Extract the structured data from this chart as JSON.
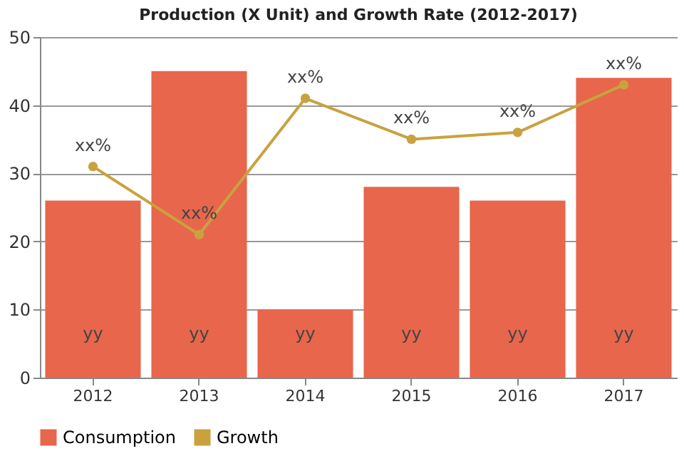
{
  "chart_data": {
    "type": "bar",
    "title": "Production (X Unit) and Growth Rate (2012-2017)",
    "categories": [
      "2012",
      "2013",
      "2014",
      "2015",
      "2016",
      "2017"
    ],
    "series": [
      {
        "name": "Consumption",
        "color": "#e8664c",
        "values": [
          26,
          45,
          10,
          28,
          26,
          44
        ],
        "value_labels": [
          "yy",
          "yy",
          "yy",
          "yy",
          "yy",
          "yy"
        ]
      },
      {
        "name": "Growth",
        "type": "line",
        "color": "#c9a23f",
        "values": [
          31,
          21,
          41,
          35,
          36,
          43
        ],
        "value_labels": [
          "xx%",
          "xx%",
          "xx%",
          "xx%",
          "xx%",
          "xx%"
        ],
        "marker": "circle",
        "line_style": "solid"
      }
    ],
    "ylim": [
      0,
      50
    ],
    "yticks": [
      0,
      10,
      20,
      30,
      40,
      50
    ],
    "grid": "y",
    "legend": "bottom"
  }
}
